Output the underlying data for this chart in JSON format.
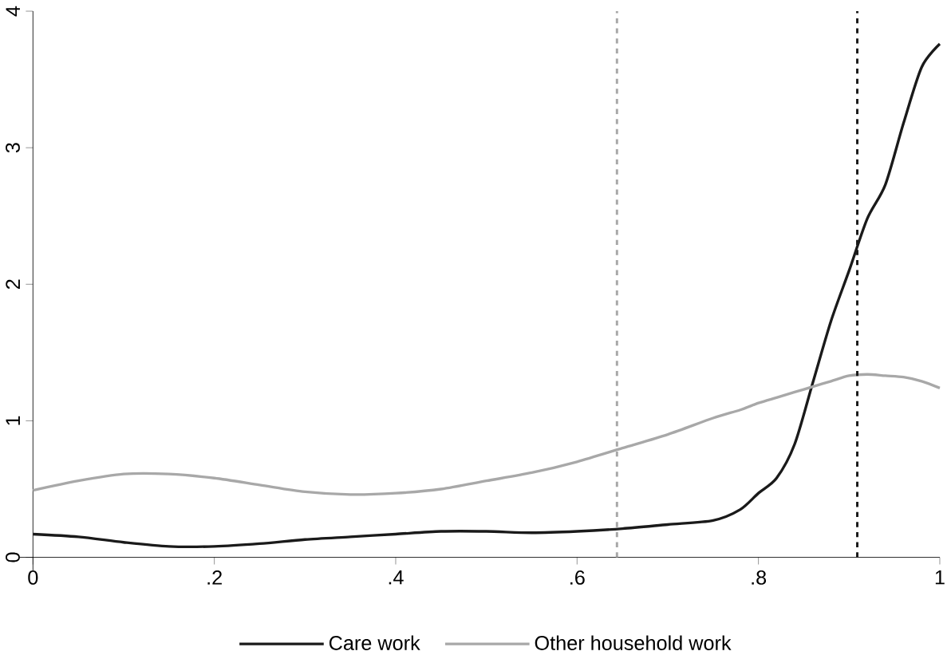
{
  "chart_data": {
    "type": "line",
    "xlim": [
      0,
      1
    ],
    "ylim": [
      0,
      4
    ],
    "xticks": [
      {
        "value": 0,
        "label": "0"
      },
      {
        "value": 0.2,
        "label": ".2"
      },
      {
        "value": 0.4,
        "label": ".4"
      },
      {
        "value": 0.6,
        "label": ".6"
      },
      {
        "value": 0.8,
        "label": ".8"
      },
      {
        "value": 1,
        "label": "1"
      }
    ],
    "yticks": [
      0,
      1,
      2,
      3,
      4
    ],
    "x": [
      0,
      0.05,
      0.1,
      0.15,
      0.2,
      0.25,
      0.3,
      0.35,
      0.4,
      0.45,
      0.5,
      0.55,
      0.6,
      0.65,
      0.7,
      0.75,
      0.78,
      0.8,
      0.82,
      0.84,
      0.86,
      0.88,
      0.9,
      0.92,
      0.94,
      0.96,
      0.98,
      1
    ],
    "series": [
      {
        "name": "Care work",
        "color": "#1a1a1a",
        "values": [
          0.17,
          0.15,
          0.11,
          0.08,
          0.08,
          0.1,
          0.13,
          0.15,
          0.17,
          0.19,
          0.19,
          0.18,
          0.19,
          0.21,
          0.24,
          0.27,
          0.35,
          0.47,
          0.58,
          0.83,
          1.28,
          1.73,
          2.1,
          2.48,
          2.73,
          3.18,
          3.59,
          3.76
        ]
      },
      {
        "name": "Other household work",
        "color": "#a8a8a8",
        "values": [
          0.49,
          0.56,
          0.61,
          0.61,
          0.58,
          0.53,
          0.48,
          0.46,
          0.47,
          0.5,
          0.56,
          0.62,
          0.7,
          0.8,
          0.9,
          1.02,
          1.08,
          1.13,
          1.17,
          1.21,
          1.25,
          1.29,
          1.33,
          1.34,
          1.33,
          1.32,
          1.29,
          1.24
        ]
      }
    ],
    "ref_lines": [
      {
        "axis": "x",
        "value": 0.644,
        "color": "#a8a8a8",
        "line_style": "dashed"
      },
      {
        "axis": "x",
        "value": 0.909,
        "color": "#1a1a1a",
        "line_style": "dashed"
      }
    ],
    "legend": "bottom",
    "grid": false,
    "marker": "none",
    "line_style": "solid"
  }
}
